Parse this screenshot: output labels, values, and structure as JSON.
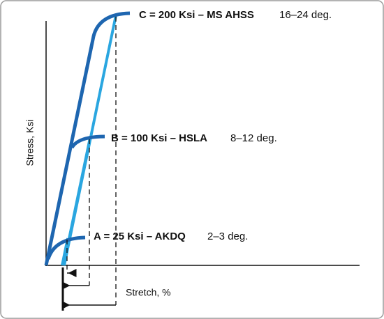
{
  "curves": [
    {
      "label": "C = 200 Ksi – MS AHSS",
      "angle": "16–24 deg."
    },
    {
      "label": "B = 100 Ksi – HSLA",
      "angle": "8–12 deg."
    },
    {
      "label": "A = 25 Ksi – AKDQ",
      "angle": "2–3 deg."
    }
  ],
  "axes": {
    "y_label": "Stress, Ksi",
    "x_label": "Stretch, %"
  }
}
